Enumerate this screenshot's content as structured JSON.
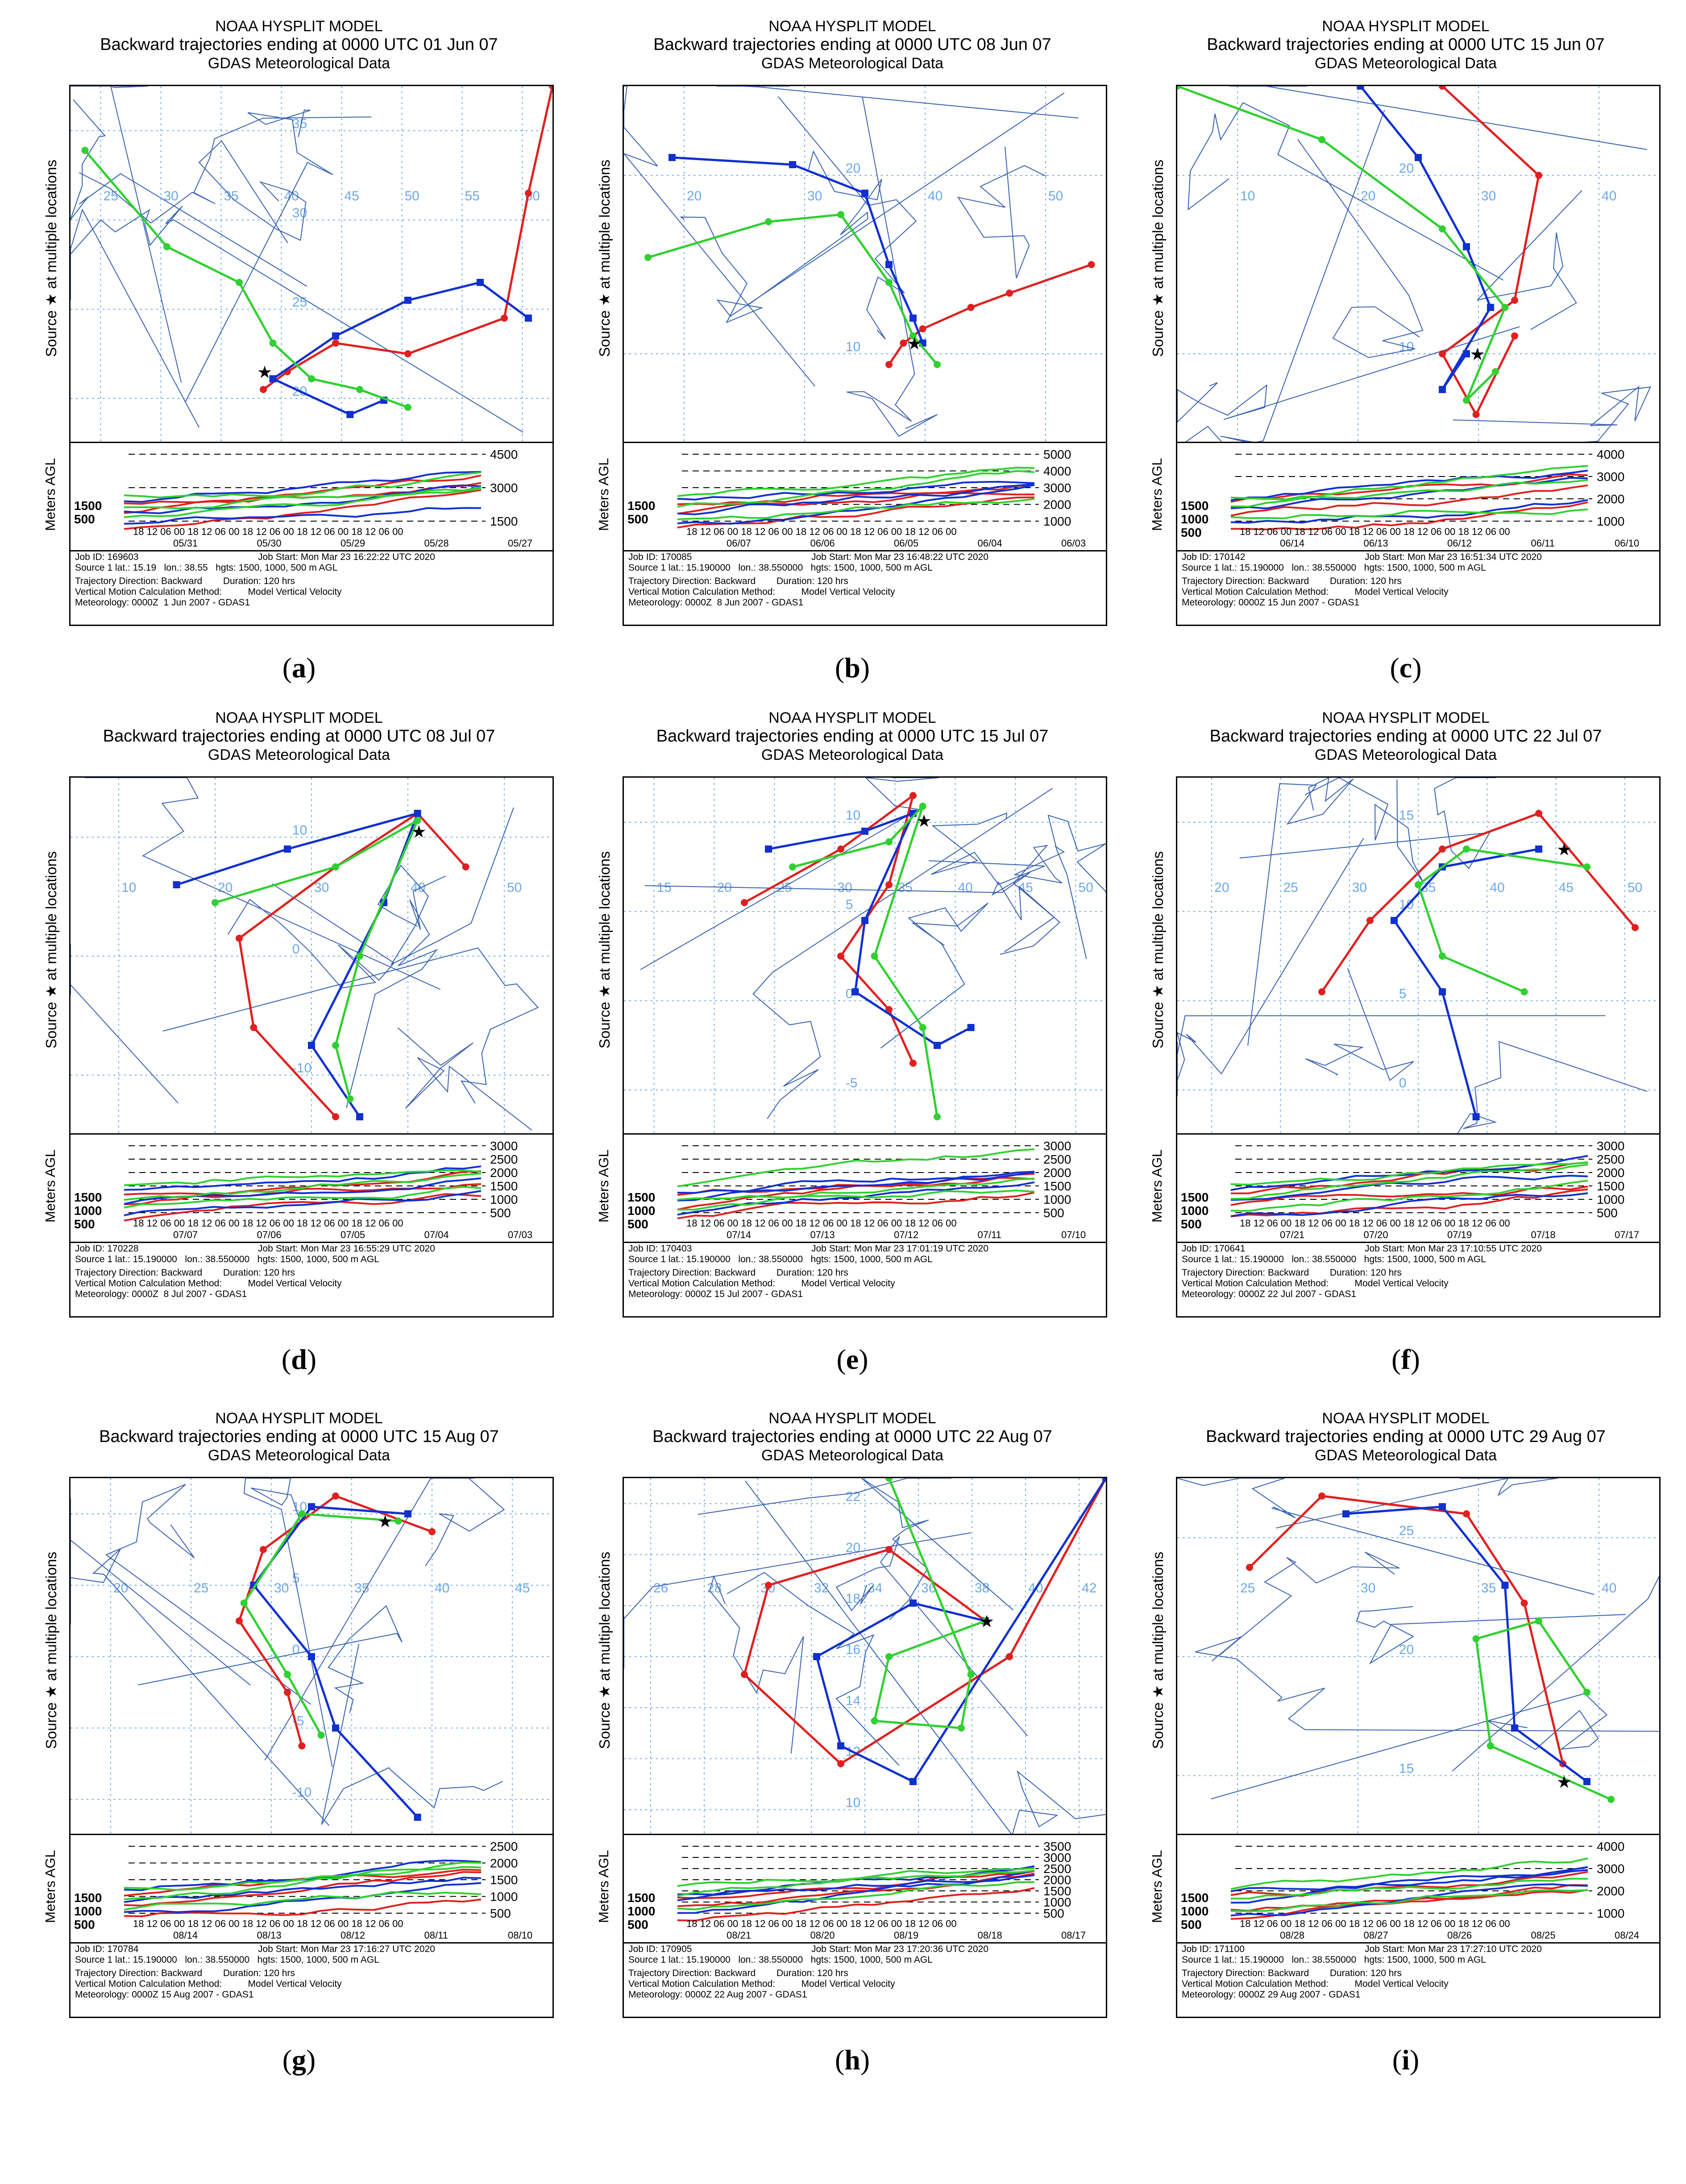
{
  "colors": {
    "red": "#e02020",
    "blue": "#1030d0",
    "green": "#30d030",
    "grid": "#6aa8e8",
    "coast": "#3060b0",
    "border": "#3a5fb0"
  },
  "panels": [
    {
      "id": "a",
      "caption": "a",
      "title1": "NOAA HYSPLIT MODEL",
      "title2": "Backward trajectories ending at 0000 UTC 01 Jun 07",
      "title3": "GDAS Meteorological Data",
      "lon_labels": [
        "25",
        "30",
        "35",
        "40",
        "45",
        "50",
        "55",
        "60"
      ],
      "lat_labels": [
        "35",
        "30",
        "25",
        "20"
      ],
      "alt_ticks": [
        "4500",
        "3000",
        "1500"
      ],
      "alt_left": [
        "1500",
        "500"
      ],
      "time_ticks": "18 12 06 00 18 12 06 00 18 12 06 00 18 12 06 00 18 12 06 00",
      "date_ticks": [
        "05/31",
        "05/30",
        "05/29",
        "05/28",
        "05/27"
      ],
      "job": "Job ID: 169603",
      "job_start": "Job Start: Mon Mar 23 16:22:22 UTC 2020",
      "source": "Source 1 lat.: 15.19   lon.: 38.55   hgts: 1500, 1000, 500 m AGL",
      "traj": "Trajectory Direction: Backward        Duration: 120 hrs",
      "vmeth": "Vertical Motion Calculation Method:          Model Vertical Velocity",
      "met": "Meteorology: 0000Z  1 Jun 2007 - GDAS1"
    },
    {
      "id": "b",
      "caption": "b",
      "title1": "NOAA HYSPLIT MODEL",
      "title2": "Backward trajectories ending at 0000 UTC 08 Jun 07",
      "title3": "GDAS Meteorological Data",
      "lon_labels": [
        "20",
        "30",
        "40",
        "50"
      ],
      "lat_labels": [
        "20",
        "10"
      ],
      "alt_ticks": [
        "5000",
        "4000",
        "3000",
        "2000",
        "1000"
      ],
      "alt_left": [
        "1500",
        "500"
      ],
      "time_ticks": "18 12 06 00 18 12 06 00 18 12 06 00 18 12 06 00 18 12 06 00",
      "date_ticks": [
        "06/07",
        "06/06",
        "06/05",
        "06/04",
        "06/03"
      ],
      "job": "Job ID: 170085",
      "job_start": "Job Start: Mon Mar 23 16:48:22 UTC 2020",
      "source": "Source 1 lat.: 15.190000   lon.: 38.550000   hgts: 1500, 1000, 500 m AGL",
      "traj": "Trajectory Direction: Backward        Duration: 120 hrs",
      "vmeth": "Vertical Motion Calculation Method:          Model Vertical Velocity",
      "met": "Meteorology: 0000Z  8 Jun 2007 - GDAS1"
    },
    {
      "id": "c",
      "caption": "c",
      "title1": "NOAA HYSPLIT MODEL",
      "title2": "Backward trajectories ending at 0000 UTC 15 Jun 07",
      "title3": "GDAS Meteorological Data",
      "lon_labels": [
        "10",
        "20",
        "30",
        "40"
      ],
      "lat_labels": [
        "20",
        "10"
      ],
      "alt_ticks": [
        "4000",
        "3000",
        "2000",
        "1000"
      ],
      "alt_left": [
        "1500",
        "1000",
        "500"
      ],
      "time_ticks": "18 12 06 00 18 12 06 00 18 12 06 00 18 12 06 00 18 12 06 00",
      "date_ticks": [
        "06/14",
        "06/13",
        "06/12",
        "06/11",
        "06/10"
      ],
      "job": "Job ID: 170142",
      "job_start": "Job Start: Mon Mar 23 16:51:34 UTC 2020",
      "source": "Source 1 lat.: 15.190000   lon.: 38.550000   hgts: 1500, 1000, 500 m AGL",
      "traj": "Trajectory Direction: Backward        Duration: 120 hrs",
      "vmeth": "Vertical Motion Calculation Method:          Model Vertical Velocity",
      "met": "Meteorology: 0000Z 15 Jun 2007 - GDAS1"
    },
    {
      "id": "d",
      "caption": "d",
      "title1": "NOAA HYSPLIT MODEL",
      "title2": "Backward trajectories ending at 0000 UTC 08 Jul 07",
      "title3": "GDAS Meteorological Data",
      "lon_labels": [
        "10",
        "20",
        "30",
        "40",
        "50"
      ],
      "lat_labels": [
        "10",
        "0",
        "-10"
      ],
      "alt_ticks": [
        "3000",
        "2500",
        "2000",
        "1500",
        "1000",
        "500"
      ],
      "alt_left": [
        "1500",
        "1000",
        "500"
      ],
      "time_ticks": "18 12 06 00 18 12 06 00 18 12 06 00 18 12 06 00 18 12 06 00",
      "date_ticks": [
        "07/07",
        "07/06",
        "07/05",
        "07/04",
        "07/03"
      ],
      "job": "Job ID: 170228",
      "job_start": "Job Start: Mon Mar 23 16:55:29 UTC 2020",
      "source": "Source 1 lat.: 15.190000   lon.: 38.550000   hgts: 1500, 1000, 500 m AGL",
      "traj": "Trajectory Direction: Backward        Duration: 120 hrs",
      "vmeth": "Vertical Motion Calculation Method:          Model Vertical Velocity",
      "met": "Meteorology: 0000Z  8 Jul 2007 - GDAS1"
    },
    {
      "id": "e",
      "caption": "e",
      "title1": "NOAA HYSPLIT MODEL",
      "title2": "Backward trajectories ending at 0000 UTC 15 Jul 07",
      "title3": "GDAS Meteorological Data",
      "lon_labels": [
        "15",
        "20",
        "25",
        "30",
        "35",
        "40",
        "45",
        "50"
      ],
      "lat_labels": [
        "10",
        "5",
        "0",
        "-5"
      ],
      "alt_ticks": [
        "3000",
        "2500",
        "2000",
        "1500",
        "1000",
        "500"
      ],
      "alt_left": [
        "1500",
        "1000",
        "500"
      ],
      "time_ticks": "18 12 06 00 18 12 06 00 18 12 06 00 18 12 06 00 18 12 06 00",
      "date_ticks": [
        "07/14",
        "07/13",
        "07/12",
        "07/11",
        "07/10"
      ],
      "job": "Job ID: 170403",
      "job_start": "Job Start: Mon Mar 23 17:01:19 UTC 2020",
      "source": "Source 1 lat.: 15.190000   lon.: 38.550000   hgts: 1500, 1000, 500 m AGL",
      "traj": "Trajectory Direction: Backward        Duration: 120 hrs",
      "vmeth": "Vertical Motion Calculation Method:          Model Vertical Velocity",
      "met": "Meteorology: 0000Z 15 Jul 2007 - GDAS1"
    },
    {
      "id": "f",
      "caption": "f",
      "title1": "NOAA HYSPLIT MODEL",
      "title2": "Backward trajectories ending at 0000 UTC 22 Jul 07",
      "title3": "GDAS Meteorological Data",
      "lon_labels": [
        "20",
        "25",
        "30",
        "35",
        "40",
        "45",
        "50"
      ],
      "lat_labels": [
        "15",
        "10",
        "5",
        "0"
      ],
      "alt_ticks": [
        "3000",
        "2500",
        "2000",
        "1500",
        "1000",
        "500"
      ],
      "alt_left": [
        "1500",
        "1000",
        "500"
      ],
      "time_ticks": "18 12 06 00 18 12 06 00 18 12 06 00 18 12 06 00 18 12 06 00",
      "date_ticks": [
        "07/21",
        "07/20",
        "07/19",
        "07/18",
        "07/17"
      ],
      "job": "Job ID: 170641",
      "job_start": "Job Start: Mon Mar 23 17:10:55 UTC 2020",
      "source": "Source 1 lat.: 15.190000   lon.: 38.550000   hgts: 1500, 1000, 500 m AGL",
      "traj": "Trajectory Direction: Backward        Duration: 120 hrs",
      "vmeth": "Vertical Motion Calculation Method:          Model Vertical Velocity",
      "met": "Meteorology: 0000Z 22 Jul 2007 - GDAS1"
    },
    {
      "id": "g",
      "caption": "g",
      "title1": "NOAA HYSPLIT MODEL",
      "title2": "Backward trajectories ending at 0000 UTC 15 Aug 07",
      "title3": "GDAS Meteorological Data",
      "lon_labels": [
        "20",
        "25",
        "30",
        "35",
        "40",
        "45"
      ],
      "lat_labels": [
        "10",
        "5",
        "0",
        "-5",
        "-10"
      ],
      "alt_ticks": [
        "2500",
        "2000",
        "1500",
        "1000",
        "500"
      ],
      "alt_left": [
        "1500",
        "1000",
        "500"
      ],
      "time_ticks": "18 12 06 00 18 12 06 00 18 12 06 00 18 12 06 00 18 12 06 00",
      "date_ticks": [
        "08/14",
        "08/13",
        "08/12",
        "08/11",
        "08/10"
      ],
      "job": "Job ID: 170784",
      "job_start": "Job Start: Mon Mar 23 17:16:27 UTC 2020",
      "source": "Source 1 lat.: 15.190000   lon.: 38.550000   hgts: 1500, 1000, 500 m AGL",
      "traj": "Trajectory Direction: Backward        Duration: 120 hrs",
      "vmeth": "Vertical Motion Calculation Method:          Model Vertical Velocity",
      "met": "Meteorology: 0000Z 15 Aug 2007 - GDAS1"
    },
    {
      "id": "h",
      "caption": "h",
      "title1": "NOAA HYSPLIT MODEL",
      "title2": "Backward trajectories ending at 0000 UTC 22 Aug 07",
      "title3": "GDAS Meteorological Data",
      "lon_labels": [
        "26",
        "28",
        "30",
        "32",
        "34",
        "36",
        "38",
        "40",
        "42"
      ],
      "lat_labels": [
        "22",
        "20",
        "18",
        "16",
        "14",
        "12",
        "10"
      ],
      "alt_ticks": [
        "3500",
        "3000",
        "2500",
        "2000",
        "1500",
        "1000",
        "500"
      ],
      "alt_left": [
        "1500",
        "1000",
        "500"
      ],
      "time_ticks": "18 12 06 00 18 12 06 00 18 12 06 00 18 12 06 00 18 12 06 00",
      "date_ticks": [
        "08/21",
        "08/20",
        "08/19",
        "08/18",
        "08/17"
      ],
      "job": "Job ID: 170905",
      "job_start": "Job Start: Mon Mar 23 17:20:36 UTC 2020",
      "source": "Source 1 lat.: 15.190000   lon.: 38.550000   hgts: 1500, 1000, 500 m AGL",
      "traj": "Trajectory Direction: Backward        Duration: 120 hrs",
      "vmeth": "Vertical Motion Calculation Method:          Model Vertical Velocity",
      "met": "Meteorology: 0000Z 22 Aug 2007 - GDAS1"
    },
    {
      "id": "i",
      "caption": "i",
      "title1": "NOAA HYSPLIT MODEL",
      "title2": "Backward trajectories ending at 0000 UTC 29 Aug 07",
      "title3": "GDAS Meteorological Data",
      "lon_labels": [
        "25",
        "30",
        "35",
        "40"
      ],
      "lat_labels": [
        "25",
        "20",
        "15"
      ],
      "alt_ticks": [
        "4000",
        "3000",
        "2000",
        "1000"
      ],
      "alt_left": [
        "1500",
        "1000",
        "500"
      ],
      "time_ticks": "18 12 06 00 18 12 06 00 18 12 06 00 18 12 06 00 18 12 06 00",
      "date_ticks": [
        "08/28",
        "08/27",
        "08/26",
        "08/25",
        "08/24"
      ],
      "job": "Job ID: 171100",
      "job_start": "Job Start: Mon Mar 23 17:27:10 UTC 2020",
      "source": "Source 1 lat.: 15.190000   lon.: 38.550000   hgts: 1500, 1000, 500 m AGL",
      "traj": "Trajectory Direction: Backward        Duration: 120 hrs",
      "vmeth": "Vertical Motion Calculation Method:          Model Vertical Velocity",
      "met": "Meteorology: 0000Z 29 Aug 2007 - GDAS1"
    }
  ],
  "labels": {
    "source_axis": "Source ★ at multiple locations",
    "alt_axis": "Meters AGL"
  }
}
